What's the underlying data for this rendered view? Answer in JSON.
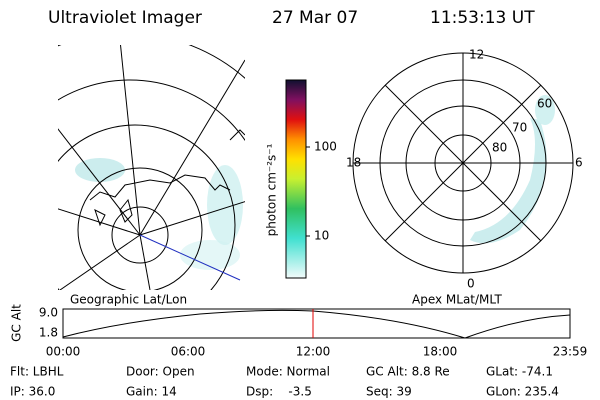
{
  "header": {
    "title": "Ultraviolet Imager",
    "date": "27 Mar 07",
    "time": "11:53:13 UT"
  },
  "colorbar": {
    "label": "photon cm⁻²s⁻¹",
    "ticks": [
      "100",
      "10"
    ]
  },
  "polar": {
    "mlt_labels": [
      "12",
      "18",
      "6",
      "0"
    ],
    "lat_labels": [
      "60",
      "70",
      "80"
    ]
  },
  "map_labels": {
    "left": "Geographic Lat/Lon",
    "right": "Apex MLat/MLT"
  },
  "altitude_plot": {
    "ylabel": "GC Alt",
    "yticks": [
      "9.0",
      "1.8"
    ],
    "xticks": [
      "00:00",
      "06:00",
      "12:00",
      "18:00",
      "23:59"
    ]
  },
  "info": [
    [
      "Flt: LBHL",
      "IP: 36.0"
    ],
    [
      "Door: Open",
      "Gain: 14"
    ],
    [
      "Mode: Normal",
      "Dsp:    -3.5"
    ],
    [
      "GC Alt: 8.8 Re",
      "Seq: 39"
    ],
    [
      "GLat: -74.1",
      "GLon: 235.4"
    ]
  ]
}
